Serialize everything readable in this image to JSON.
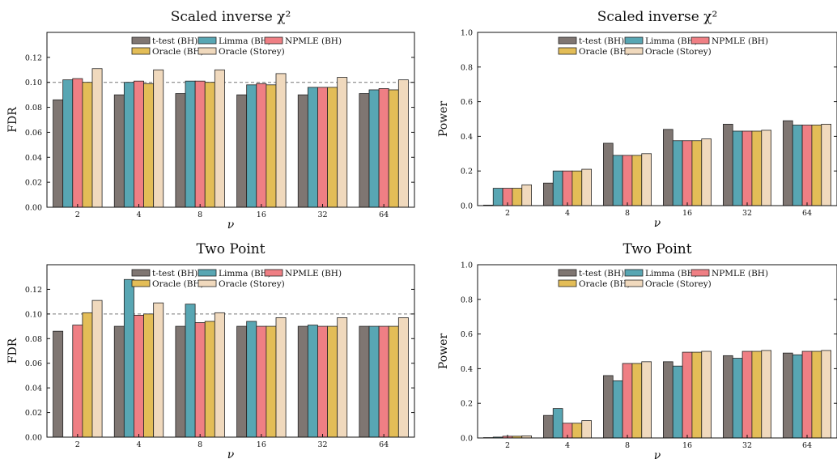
{
  "palette": {
    "t-test (BH)": "#7f7672",
    "Limma (BH)": "#58a6b3",
    "NPMLE (BH)": "#ef7f84",
    "Oracle (BH)": "#e3bd57",
    "Oracle (Storey)": "#f0d9bd"
  },
  "chart_data": [
    {
      "type": "bar",
      "title": "Scaled inverse χ²",
      "xlabel": "ν",
      "ylabel": "FDR",
      "categories": [
        "2",
        "4",
        "8",
        "16",
        "32",
        "64"
      ],
      "ylim": [
        0,
        0.14
      ],
      "yticks": [
        "0.00",
        "0.02",
        "0.04",
        "0.06",
        "0.08",
        "0.10",
        "0.12"
      ],
      "reference_line": 0.1,
      "legend": "top-center",
      "series": [
        {
          "name": "t-test (BH)",
          "values": [
            0.086,
            0.09,
            0.091,
            0.09,
            0.09,
            0.091
          ]
        },
        {
          "name": "Limma (BH)",
          "values": [
            0.102,
            0.1,
            0.101,
            0.098,
            0.096,
            0.094
          ]
        },
        {
          "name": "NPMLE (BH)",
          "values": [
            0.103,
            0.101,
            0.101,
            0.099,
            0.096,
            0.095
          ]
        },
        {
          "name": "Oracle (BH)",
          "values": [
            0.1,
            0.099,
            0.1,
            0.098,
            0.096,
            0.094
          ]
        },
        {
          "name": "Oracle (Storey)",
          "values": [
            0.111,
            0.11,
            0.11,
            0.107,
            0.104,
            0.102
          ]
        }
      ]
    },
    {
      "type": "bar",
      "title": "Scaled inverse χ²",
      "xlabel": "ν",
      "ylabel": "Power",
      "categories": [
        "2",
        "4",
        "8",
        "16",
        "32",
        "64"
      ],
      "ylim": [
        0,
        1.0
      ],
      "yticks": [
        "0.0",
        "0.2",
        "0.4",
        "0.6",
        "0.8",
        "1.0"
      ],
      "legend": "top-center",
      "series": [
        {
          "name": "t-test (BH)",
          "values": [
            0.003,
            0.13,
            0.36,
            0.44,
            0.47,
            0.49
          ]
        },
        {
          "name": "Limma (BH)",
          "values": [
            0.1,
            0.2,
            0.29,
            0.375,
            0.43,
            0.465
          ]
        },
        {
          "name": "NPMLE (BH)",
          "values": [
            0.1,
            0.2,
            0.29,
            0.375,
            0.43,
            0.465
          ]
        },
        {
          "name": "Oracle (BH)",
          "values": [
            0.1,
            0.2,
            0.29,
            0.375,
            0.43,
            0.465
          ]
        },
        {
          "name": "Oracle (Storey)",
          "values": [
            0.12,
            0.21,
            0.3,
            0.385,
            0.435,
            0.47
          ]
        }
      ]
    },
    {
      "type": "bar",
      "title": "Two Point",
      "xlabel": "ν",
      "ylabel": "FDR",
      "categories": [
        "2",
        "4",
        "8",
        "16",
        "32",
        "64"
      ],
      "ylim": [
        0,
        0.14
      ],
      "yticks": [
        "0.00",
        "0.02",
        "0.04",
        "0.06",
        "0.08",
        "0.10",
        "0.12"
      ],
      "reference_line": 0.1,
      "legend": "top-center",
      "series": [
        {
          "name": "t-test (BH)",
          "values": [
            0.086,
            0.09,
            0.09,
            0.09,
            0.09,
            0.09
          ]
        },
        {
          "name": "Limma (BH)",
          "values": [
            0.0,
            0.128,
            0.108,
            0.094,
            0.091,
            0.09
          ]
        },
        {
          "name": "NPMLE (BH)",
          "values": [
            0.091,
            0.099,
            0.093,
            0.09,
            0.09,
            0.09
          ]
        },
        {
          "name": "Oracle (BH)",
          "values": [
            0.101,
            0.1,
            0.094,
            0.09,
            0.09,
            0.09
          ]
        },
        {
          "name": "Oracle (Storey)",
          "values": [
            0.111,
            0.109,
            0.101,
            0.097,
            0.097,
            0.097
          ]
        }
      ]
    },
    {
      "type": "bar",
      "title": "Two Point",
      "xlabel": "ν",
      "ylabel": "Power",
      "categories": [
        "2",
        "4",
        "8",
        "16",
        "32",
        "64"
      ],
      "ylim": [
        0,
        1.0
      ],
      "yticks": [
        "0.0",
        "0.2",
        "0.4",
        "0.6",
        "0.8",
        "1.0"
      ],
      "legend": "top-center",
      "series": [
        {
          "name": "t-test (BH)",
          "values": [
            0.002,
            0.13,
            0.36,
            0.44,
            0.475,
            0.49
          ]
        },
        {
          "name": "Limma (BH)",
          "values": [
            0.005,
            0.17,
            0.33,
            0.415,
            0.46,
            0.48
          ]
        },
        {
          "name": "NPMLE (BH)",
          "values": [
            0.01,
            0.085,
            0.43,
            0.495,
            0.5,
            0.5
          ]
        },
        {
          "name": "Oracle (BH)",
          "values": [
            0.01,
            0.085,
            0.43,
            0.495,
            0.5,
            0.5
          ]
        },
        {
          "name": "Oracle (Storey)",
          "values": [
            0.012,
            0.1,
            0.44,
            0.5,
            0.505,
            0.505
          ]
        }
      ]
    }
  ]
}
